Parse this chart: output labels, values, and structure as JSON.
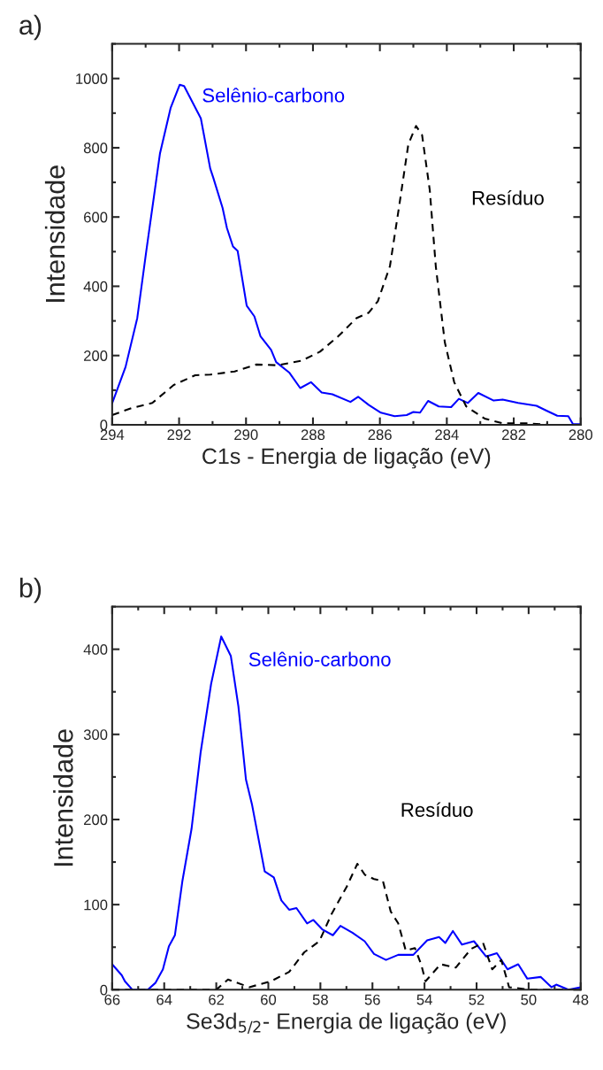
{
  "chart_data": [
    {
      "type": "line",
      "xlabel": "C1s - Energia de ligação (eV)",
      "ylabel": "Intensidade",
      "xlim": [
        294,
        280
      ],
      "xticks": [
        294,
        292,
        290,
        288,
        286,
        284,
        282,
        280
      ],
      "ylim": [
        0,
        1100
      ],
      "yticks": [
        0,
        200,
        400,
        600,
        800,
        1000
      ],
      "grid": false,
      "legend": false,
      "annotations": [
        "a)"
      ],
      "series": [
        {
          "name": "Selênio-carbono",
          "color": "#0000ff",
          "line_style": "solid",
          "x": [
            294,
            293.6,
            293.25,
            292.98,
            292.57,
            292.25,
            291.98,
            291.85,
            291.35,
            291.07,
            290.98,
            290.7,
            290.57,
            290.39,
            290.25,
            289.98,
            289.75,
            289.57,
            289.25,
            289.1,
            288.7,
            288.38,
            288.06,
            287.74,
            287.42,
            286.88,
            286.65,
            286.33,
            285.97,
            285.56,
            285.2,
            285.0,
            284.8,
            284.56,
            284.24,
            283.87,
            283.64,
            283.37,
            283.06,
            282.6,
            282.33,
            281.87,
            281.32,
            281.05,
            280.7,
            280.37,
            280.23,
            280
          ],
          "values": [
            62,
            167,
            308,
            502,
            784,
            916,
            982,
            978,
            885,
            740,
            714,
            626,
            568,
            515,
            502,
            344,
            313,
            256,
            216,
            181,
            150,
            106,
            123,
            93,
            88,
            66,
            81,
            57,
            35,
            25,
            28,
            37,
            35,
            69,
            53,
            51,
            75,
            63,
            92,
            70,
            73,
            63,
            55,
            42,
            26,
            25,
            2,
            2
          ]
        },
        {
          "name": "Resíduo",
          "color": "#000000",
          "line_style": "dashed",
          "x": [
            294,
            293.43,
            292.8,
            292.16,
            291.52,
            291.07,
            290.34,
            289.7,
            289.06,
            288.34,
            287.79,
            287.24,
            286.7,
            286.33,
            286.06,
            285.7,
            285.42,
            285.15,
            284.92,
            284.74,
            284.51,
            284.33,
            284.06,
            283.78,
            283.42,
            282.87,
            282.33,
            281.6,
            280.96,
            280
          ],
          "values": [
            28,
            48,
            63,
            115,
            143,
            145,
            154,
            174,
            172,
            185,
            211,
            256,
            308,
            324,
            357,
            458,
            634,
            810,
            863,
            837,
            678,
            458,
            238,
            123,
            53,
            18,
            4,
            4,
            0,
            0
          ]
        }
      ]
    },
    {
      "type": "line",
      "xlabel": "Se3d$_{5/2}$- Energia de ligação (eV)",
      "ylabel": "Intensidade",
      "xlim": [
        66,
        48
      ],
      "xticks": [
        66,
        64,
        62,
        60,
        58,
        56,
        54,
        52,
        50,
        48
      ],
      "ylim": [
        0,
        450
      ],
      "yticks": [
        0,
        100,
        200,
        300,
        400
      ],
      "grid": false,
      "legend": false,
      "annotations": [
        "b)"
      ],
      "series": [
        {
          "name": "Selênio-carbono",
          "color": "#0000ff",
          "line_style": "solid",
          "x": [
            66,
            65.63,
            65.51,
            65.22,
            64.63,
            64.34,
            64.05,
            63.82,
            63.59,
            63.3,
            62.95,
            62.6,
            62.2,
            61.81,
            61.44,
            61.15,
            60.86,
            60.63,
            60.14,
            59.79,
            59.5,
            59.2,
            58.92,
            58.51,
            58.27,
            57.93,
            57.52,
            57.23,
            56.77,
            56.3,
            55.94,
            55.48,
            55.01,
            54.43,
            53.9,
            53.44,
            53.2,
            52.91,
            52.56,
            52.1,
            51.63,
            51.22,
            50.81,
            50.4,
            50.05,
            49.53,
            49.12,
            48.94,
            48.47,
            48
          ],
          "values": [
            30,
            17,
            10,
            0,
            0,
            8,
            24,
            51,
            64,
            128,
            189,
            279,
            359,
            415,
            392,
            333,
            247,
            218,
            139,
            132,
            105,
            94,
            96,
            78,
            82,
            71,
            64,
            75,
            67,
            57,
            42,
            35,
            41,
            41,
            58,
            62,
            55,
            69,
            53,
            57,
            39,
            43,
            24,
            30,
            13,
            15,
            3,
            6,
            0,
            3
          ]
        },
        {
          "name": "Resíduo",
          "color": "#000000",
          "line_style": "dashed",
          "x": [
            66,
            62.0,
            61.55,
            60.73,
            59.9,
            59.2,
            58.62,
            58.04,
            57.57,
            56.99,
            56.58,
            56.29,
            55.94,
            55.6,
            55.3,
            55.01,
            54.72,
            54.37,
            54.13,
            53.96,
            53.38,
            52.8,
            52.21,
            51.75,
            51.4,
            51.05,
            50.75,
            49.88,
            48
          ],
          "values": [
            0,
            0,
            12,
            3,
            10,
            21,
            44,
            57,
            89,
            121,
            148,
            135,
            130,
            128,
            92,
            78,
            46,
            49,
            30,
            10,
            30,
            26,
            48,
            55,
            24,
            35,
            3,
            0,
            0
          ]
        }
      ]
    }
  ]
}
